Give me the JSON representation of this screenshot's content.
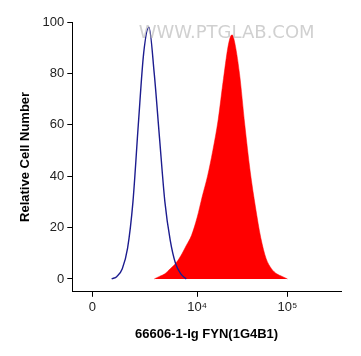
{
  "chart_data": {
    "type": "line",
    "x_label": "66606-1-Ig FYN(1G4B1)",
    "y_label": "Relative Cell Number",
    "annotations": [
      "WWW.PTGLAB.COM"
    ],
    "log": "x",
    "grid": false,
    "xlim": [
      -750,
      390000
    ],
    "xticks": [
      0,
      {
        "value": 10000,
        "label": "10⁴"
      },
      {
        "value": 100000,
        "label": "10⁵"
      }
    ],
    "ylim": [
      -5,
      100
    ],
    "yticks": [
      0,
      20,
      40,
      60,
      80,
      100
    ],
    "series": [
      {
        "type": "line",
        "color": "#1c1c8f",
        "x": [
          711,
          930,
          1168,
          1425,
          1711,
          2029,
          2388,
          2778,
          3224,
          3725,
          4308,
          4967,
          5712,
          6552,
          7546
        ],
        "values": [
          0,
          1,
          4,
          12,
          30,
          60,
          88,
          98,
          80,
          55,
          30,
          15,
          6,
          2,
          0
        ]
      },
      {
        "type": "area",
        "color": "#ff0000",
        "x": [
          3224,
          3725,
          4308,
          4967,
          5712,
          6552,
          7546,
          8652,
          10000,
          11368,
          13034,
          14924,
          17122,
          19600,
          22456,
          24360,
          25718,
          29456,
          33726,
          38640,
          44240,
          50680,
          57960,
          66500,
          76020,
          87080,
          100000
        ],
        "values": [
          0,
          1,
          2,
          4,
          6,
          9,
          13,
          17,
          24,
          32,
          40,
          50,
          62,
          78,
          92,
          95,
          93,
          80,
          60,
          42,
          28,
          16,
          8,
          4,
          2,
          1,
          0
        ]
      }
    ]
  }
}
